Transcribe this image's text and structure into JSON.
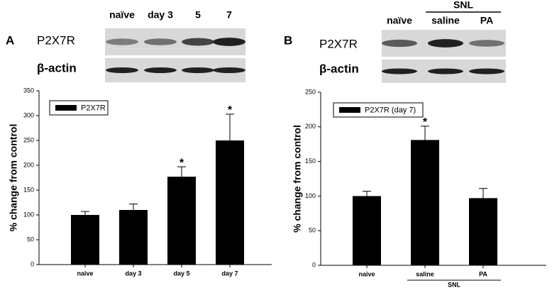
{
  "chart_data": [
    {
      "type": "bar",
      "panel": "A",
      "blot": {
        "lanes": [
          "naïve",
          "day 3",
          "5",
          "7"
        ],
        "rows": [
          "P2X7R",
          "β-actin"
        ]
      },
      "y_label": "% change from control",
      "categories": [
        "naive",
        "day 3",
        "day 5",
        "day 7"
      ],
      "series": [
        {
          "name": "P2X7R",
          "color": "#000000",
          "values": [
            100,
            110,
            177,
            250
          ],
          "errors": [
            7,
            12,
            20,
            53
          ]
        }
      ],
      "ylim": [
        0,
        350
      ],
      "yticks": [
        0,
        50,
        100,
        150,
        200,
        250,
        300,
        350
      ],
      "annotations": [
        {
          "label": "*",
          "category": "day 5"
        },
        {
          "label": "*",
          "category": "day 7"
        }
      ],
      "legend": "upper left"
    },
    {
      "type": "bar",
      "panel": "B",
      "blot": {
        "group": "SNL",
        "lanes": [
          "naïve",
          "saline",
          "PA"
        ],
        "rows": [
          "P2X7R",
          "β-actin"
        ]
      },
      "y_label": "% change from control",
      "categories": [
        "naive",
        "saline",
        "PA"
      ],
      "category_group": {
        "label": "SNL",
        "categories": [
          "saline",
          "PA"
        ]
      },
      "series": [
        {
          "name": "P2X7R (day 7)",
          "color": "#000000",
          "values": [
            100,
            181,
            97
          ],
          "errors": [
            7,
            20,
            14
          ]
        }
      ],
      "ylim": [
        0,
        250
      ],
      "yticks": [
        0,
        50,
        100,
        150,
        200,
        250
      ],
      "annotations": [
        {
          "label": "*",
          "category": "saline"
        }
      ],
      "legend": "upper left"
    }
  ]
}
